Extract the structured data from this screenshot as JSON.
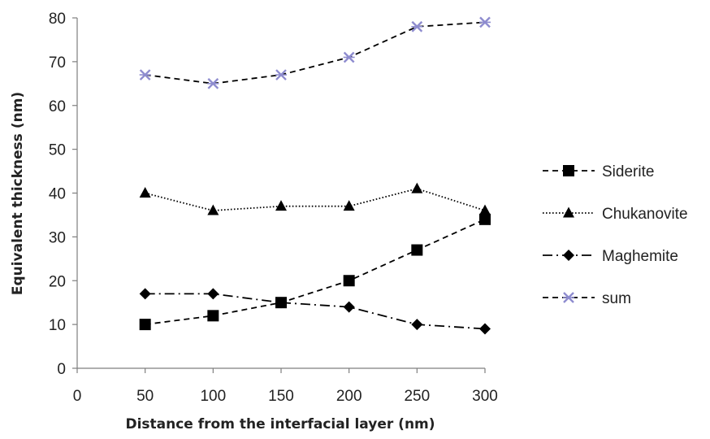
{
  "chart_data": {
    "type": "line",
    "title": "",
    "xlabel": "Distance from the interfacial layer (nm)",
    "ylabel": "Equivalent thickness (nm)",
    "xlim": [
      0,
      300
    ],
    "ylim": [
      0,
      80
    ],
    "xticks": [
      0,
      50,
      100,
      150,
      200,
      250,
      300
    ],
    "yticks": [
      0,
      10,
      20,
      30,
      40,
      50,
      60,
      70,
      80
    ],
    "grid": false,
    "legend_position": "right",
    "x": [
      50,
      100,
      150,
      200,
      250,
      300
    ],
    "series": [
      {
        "name": "Siderite",
        "values": [
          10,
          12,
          15,
          20,
          27,
          34
        ],
        "line_style": "dashed",
        "marker": "square",
        "color": "#000000"
      },
      {
        "name": "Chukanovite",
        "values": [
          40,
          36,
          37,
          37,
          41,
          36
        ],
        "line_style": "dotted",
        "marker": "triangle",
        "color": "#000000"
      },
      {
        "name": "Maghemite",
        "values": [
          17,
          17,
          15,
          14,
          10,
          9
        ],
        "line_style": "dash-dot",
        "marker": "diamond",
        "color": "#000000"
      },
      {
        "name": "sum",
        "values": [
          67,
          65,
          67,
          71,
          78,
          79
        ],
        "line_style": "dashed",
        "marker": "star",
        "color": "#000000",
        "marker_color": "#8e8ccf"
      }
    ]
  }
}
